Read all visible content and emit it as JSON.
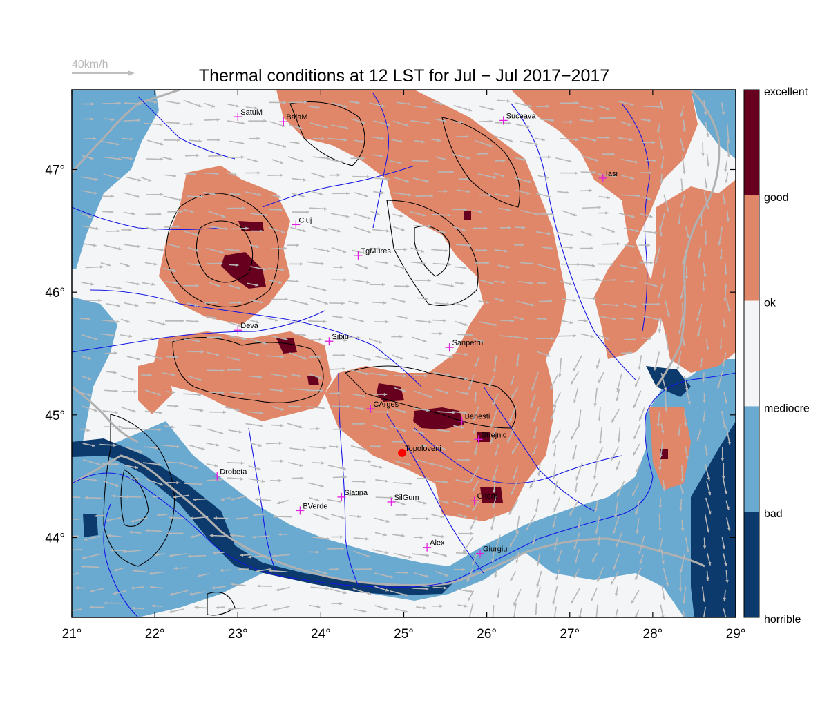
{
  "title": "Thermal conditions at 12 LST for Jul − Jul  2017−2017",
  "wind_scale_label": "40km/h",
  "colorbar": [
    {
      "label": "excellent",
      "color": "#67001f"
    },
    {
      "label": "good",
      "color": "#e0876a"
    },
    {
      "label": "ok",
      "color": "#f4f5f6"
    },
    {
      "label": "mediocre",
      "color": "#6aa9d0"
    },
    {
      "label": "bad",
      "color": "#0c3a6c"
    },
    {
      "label": "horrible",
      "color": ""
    }
  ],
  "axes": {
    "lon_ticks": [
      "21°",
      "22°",
      "23°",
      "24°",
      "25°",
      "26°",
      "27°",
      "28°",
      "29°"
    ],
    "lat_ticks": [
      "44°",
      "45°",
      "46°",
      "47°"
    ],
    "lon_range": [
      21,
      29
    ],
    "lat_range": [
      43.35,
      47.65
    ]
  },
  "colors": {
    "horrible": "#0c3a6c",
    "bad": "#6aa9d0",
    "mediocre": "#f4f5f6",
    "ok": "#e0876a",
    "good": "#67001f",
    "rivers": "#1414e6",
    "borders": "#b0b0b0",
    "city_marker": "#e020e0",
    "topoloveni_marker": "#ff0000"
  },
  "cities": [
    {
      "name": "SatuM",
      "lon": 23.0,
      "lat": 47.43
    },
    {
      "name": "BaiaM",
      "lon": 23.55,
      "lat": 47.39
    },
    {
      "name": "Suceava",
      "lon": 26.2,
      "lat": 47.4
    },
    {
      "name": "Iasi",
      "lon": 27.4,
      "lat": 46.93
    },
    {
      "name": "Cluj",
      "lon": 23.7,
      "lat": 46.55
    },
    {
      "name": "TgMures",
      "lon": 24.45,
      "lat": 46.3
    },
    {
      "name": "Deva",
      "lon": 23.0,
      "lat": 45.69
    },
    {
      "name": "Sibiu",
      "lon": 24.1,
      "lat": 45.6
    },
    {
      "name": "Sanpetru",
      "lon": 25.55,
      "lat": 45.55
    },
    {
      "name": "CArges",
      "lon": 24.6,
      "lat": 45.05
    },
    {
      "name": "Banesti",
      "lon": 25.7,
      "lat": 44.95
    },
    {
      "name": "Strejnic",
      "lon": 25.9,
      "lat": 44.8
    },
    {
      "name": "Topoloveni",
      "lon": 24.98,
      "lat": 44.69,
      "highlight": true
    },
    {
      "name": "Drobeta",
      "lon": 22.75,
      "lat": 44.5
    },
    {
      "name": "Slatina",
      "lon": 24.25,
      "lat": 44.33
    },
    {
      "name": "BVerde",
      "lon": 23.75,
      "lat": 44.22
    },
    {
      "name": "SilGum",
      "lon": 24.85,
      "lat": 44.29
    },
    {
      "name": "Olteni",
      "lon": 25.85,
      "lat": 44.3
    },
    {
      "name": "Alex",
      "lon": 25.28,
      "lat": 43.92
    },
    {
      "name": "Giurgiu",
      "lon": 25.92,
      "lat": 43.87
    }
  ]
}
